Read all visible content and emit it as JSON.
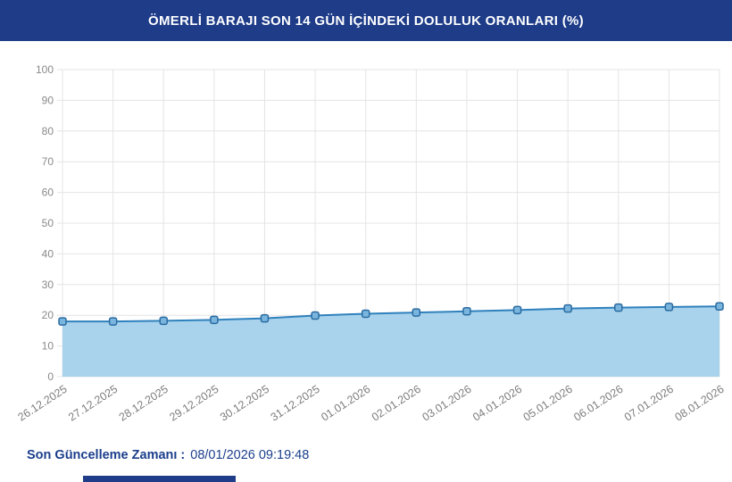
{
  "header": {
    "title": "ÖMERLİ BARAJI SON 14 GÜN İÇİNDEKİ DOLULUK ORANLARI (%)",
    "background": "#1e3c88",
    "text_color": "#ffffff"
  },
  "chart_data": {
    "type": "area",
    "title": "ÖMERLİ BARAJI SON 14 GÜN İÇİNDEKİ DOLULUK ORANLARI (%)",
    "categories": [
      "26.12.2025",
      "27.12.2025",
      "28.12.2025",
      "29.12.2025",
      "30.12.2025",
      "31.12.2025",
      "01.01.2026",
      "02.01.2026",
      "03.01.2026",
      "04.01.2026",
      "05.01.2026",
      "06.01.2026",
      "07.01.2026",
      "08.01.2026"
    ],
    "values": [
      18.0,
      18.0,
      18.2,
      18.5,
      19.0,
      19.9,
      20.5,
      20.9,
      21.3,
      21.7,
      22.2,
      22.5,
      22.7,
      22.9
    ],
    "xlabel": "",
    "ylabel": "",
    "ylim": [
      0,
      100
    ],
    "yticks": [
      0,
      10,
      20,
      30,
      40,
      50,
      60,
      70,
      80,
      90,
      100
    ],
    "grid": true,
    "legend": "none",
    "line_color": "#2f81bd",
    "fill_color": "#a9d3ec",
    "marker_fill": "#7ab5de",
    "marker_border": "#2a6ba1",
    "grid_color": "#e4e4e4",
    "y_label_color": "#8a8a8a",
    "x_label_color": "#7d7d7d"
  },
  "footer": {
    "label": "Son Güncelleme Zamanı :",
    "value": "08/01/2026 09:19:48",
    "text_color": "#1b3e8c"
  },
  "partial_bottom_banner": {
    "color": "#1e3c88"
  }
}
